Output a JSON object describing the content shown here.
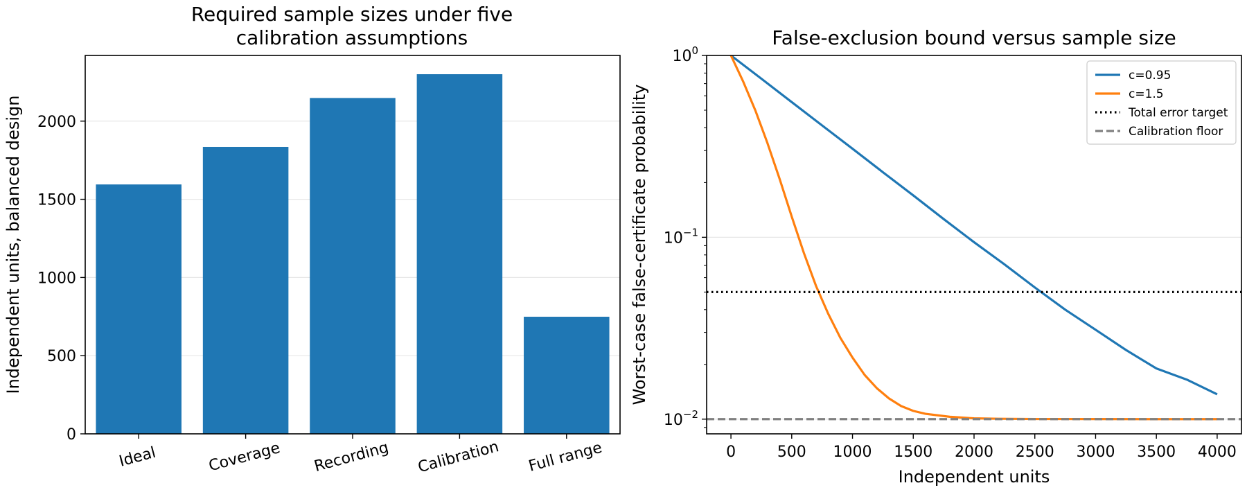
{
  "chart_data": [
    {
      "type": "bar",
      "title": "Required sample sizes under five calibration assumptions",
      "title_lines": [
        "Required sample sizes under five",
        "calibration assumptions"
      ],
      "xlabel": "",
      "ylabel": "Independent units, balanced design",
      "categories": [
        "Ideal",
        "Coverage",
        "Recording",
        "Calibration",
        "Full range"
      ],
      "values": [
        1595,
        1835,
        2148,
        2300,
        749
      ],
      "ylim": [
        0,
        2420
      ],
      "yticks": [
        0,
        500,
        1000,
        1500,
        2000
      ],
      "grid": "y",
      "bar_color": "#1f77b4"
    },
    {
      "type": "line",
      "title": "False-exclusion bound versus sample size",
      "xlabel": "Independent units",
      "ylabel": "Worst-case false-certificate probability",
      "x_scale": "linear",
      "y_scale": "log",
      "xlim": [
        -200,
        4200
      ],
      "ylim": [
        0.0083,
        1.0
      ],
      "xticks": [
        0,
        500,
        1000,
        1500,
        2000,
        2500,
        3000,
        3500,
        4000
      ],
      "yticks": [
        {
          "value": 1.0,
          "base": "10",
          "exp": "0"
        },
        {
          "value": 0.1,
          "base": "10",
          "exp": "−1"
        },
        {
          "value": 0.01,
          "base": "10",
          "exp": "−2"
        }
      ],
      "grid": "y",
      "legend": "top-right",
      "series": [
        {
          "name": "c=0.95",
          "color": "#1f77b4",
          "style": "solid",
          "x": [
            0,
            250,
            500,
            750,
            1000,
            1250,
            1500,
            1750,
            2000,
            2250,
            2500,
            2750,
            3000,
            3250,
            3500,
            3750,
            4000
          ],
          "y": [
            1.0,
            0.745,
            0.554,
            0.412,
            0.307,
            0.228,
            0.17,
            0.126,
            0.094,
            0.071,
            0.053,
            0.04,
            0.031,
            0.024,
            0.019,
            0.0165,
            0.0137
          ]
        },
        {
          "name": "c=1.5",
          "color": "#ff7f0e",
          "style": "solid",
          "x": [
            0,
            100,
            200,
            300,
            400,
            500,
            600,
            700,
            800,
            900,
            1000,
            1100,
            1200,
            1300,
            1400,
            1500,
            1600,
            1800,
            2000,
            2200,
            2500,
            3000,
            3500,
            4000
          ],
          "y": [
            1.0,
            0.72,
            0.5,
            0.33,
            0.21,
            0.13,
            0.082,
            0.054,
            0.038,
            0.028,
            0.0218,
            0.0175,
            0.0148,
            0.013,
            0.0118,
            0.0111,
            0.0107,
            0.0103,
            0.0101,
            0.01005,
            0.01002,
            0.01001,
            0.01,
            0.01
          ]
        },
        {
          "name": "Total error target",
          "color": "#000000",
          "style": "dotted",
          "hline": 0.05
        },
        {
          "name": "Calibration floor",
          "color": "#808080",
          "style": "dashed",
          "hline": 0.01
        }
      ]
    }
  ]
}
